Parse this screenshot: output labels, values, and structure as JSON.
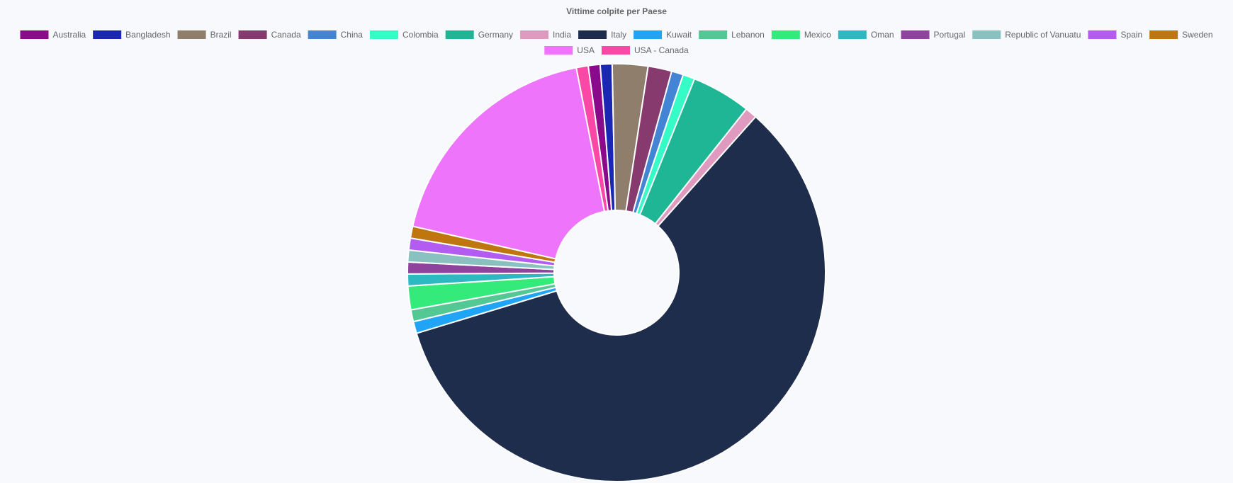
{
  "chart_data": {
    "type": "doughnut",
    "title": "Vittime colpite per Paese",
    "legend_position": "top",
    "categories": [
      "Australia",
      "Bangladesh",
      "Brazil",
      "Canada",
      "China",
      "Colombia",
      "Germany",
      "India",
      "Italy",
      "Kuwait",
      "Lebanon",
      "Mexico",
      "Oman",
      "Portugal",
      "Republic of Vanuatu",
      "Spain",
      "Sweden",
      "USA",
      "USA - Canada"
    ],
    "values": [
      1,
      1,
      3,
      2,
      1,
      1,
      5,
      1,
      64,
      1,
      1,
      2,
      1,
      1,
      1,
      1,
      1,
      20,
      1
    ],
    "colors": [
      "#8b0a8b",
      "#1a27b3",
      "#8f7e6b",
      "#873a6e",
      "#4384d5",
      "#35fbc6",
      "#1fb696",
      "#e099bf",
      "#1f2d4d",
      "#1fa4f6",
      "#52c994",
      "#34ea7a",
      "#2db9c2",
      "#8e449c",
      "#88c1c0",
      "#b35cf2",
      "#bf760f",
      "#ee74fb",
      "#fb47a6"
    ]
  }
}
